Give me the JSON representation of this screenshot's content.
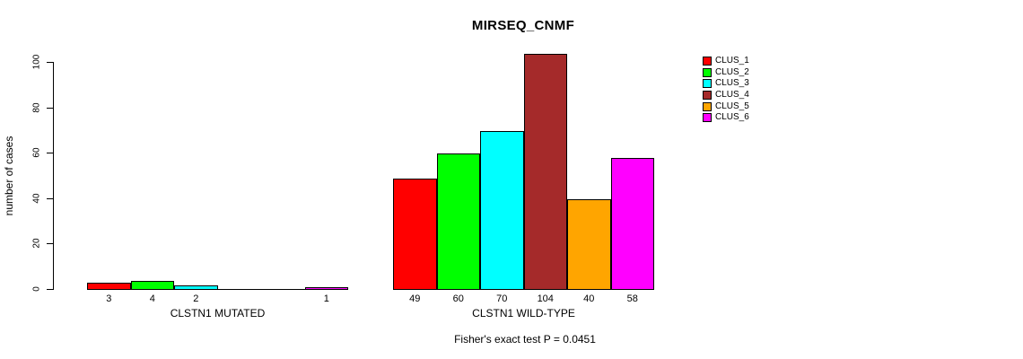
{
  "title": "MIRSEQ_CNMF",
  "y_axis": {
    "label": "number of cases",
    "ticks": [
      0,
      20,
      40,
      60,
      80,
      100
    ]
  },
  "annotation": "Fisher's exact test P = 0.0451",
  "chart_data": {
    "type": "bar",
    "title": "MIRSEQ_CNMF",
    "xlabel": "",
    "ylabel": "number of cases",
    "ylim": [
      0,
      100
    ],
    "y_ticks": [
      0,
      20,
      40,
      60,
      80,
      100
    ],
    "grid": false,
    "legend_position": "top-right",
    "categories": [
      "CLSTN1 MUTATED",
      "CLSTN1 WILD-TYPE"
    ],
    "series": [
      {
        "name": "CLUS_1",
        "color": "#ff0000",
        "values": [
          3,
          49
        ]
      },
      {
        "name": "CLUS_2",
        "color": "#00ff00",
        "values": [
          4,
          60
        ]
      },
      {
        "name": "CLUS_3",
        "color": "#00ffff",
        "values": [
          2,
          70
        ]
      },
      {
        "name": "CLUS_4",
        "color": "#a52a2a",
        "values": [
          0,
          104
        ]
      },
      {
        "name": "CLUS_5",
        "color": "#ffa500",
        "values": [
          0,
          40
        ]
      },
      {
        "name": "CLUS_6",
        "color": "#ff00ff",
        "values": [
          1,
          58
        ]
      }
    ],
    "bar_value_labels": "values shown under each nonzero bar",
    "annotation": "Fisher's exact test P = 0.0451"
  }
}
